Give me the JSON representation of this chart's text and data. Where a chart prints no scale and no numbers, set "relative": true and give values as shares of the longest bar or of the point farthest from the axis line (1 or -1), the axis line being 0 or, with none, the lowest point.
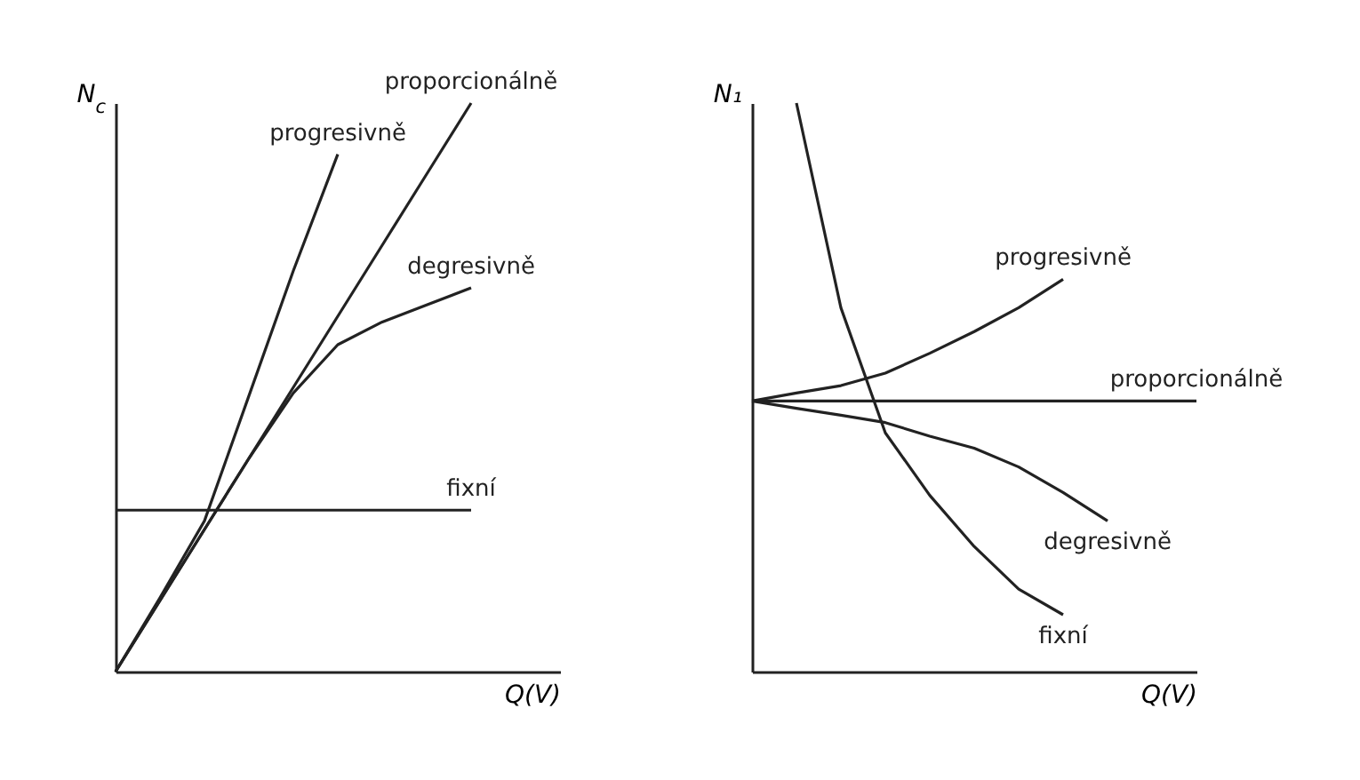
{
  "chart_data": [
    {
      "type": "line",
      "relative": true,
      "tick_labels": false,
      "ylabel": "N$_{c}$",
      "xlabel": "Q(V)",
      "categories": [
        null,
        null,
        null,
        null,
        null,
        null,
        null,
        null,
        null,
        null,
        null
      ],
      "series": [
        {
          "name": "progresivně",
          "color": "#222222",
          "values": [
            0,
            0.13,
            0.265,
            0.485,
            0.705,
            0.91,
            null,
            null,
            null,
            null,
            null
          ]
        },
        {
          "name": "proporcionálně",
          "color": "#222222",
          "values": [
            0,
            0.125,
            0.25,
            0.375,
            0.5,
            0.625,
            0.75,
            0.875,
            1,
            null,
            null
          ]
        },
        {
          "name": "degresivně",
          "color": "#222222",
          "values": [
            0,
            0.125,
            0.25,
            0.375,
            0.49,
            0.575,
            0.615,
            0.645,
            0.675,
            null,
            null
          ]
        },
        {
          "name": "fixní",
          "color": "#222222",
          "values": [
            0.284,
            0.284,
            0.284,
            0.284,
            0.284,
            0.284,
            0.284,
            0.284,
            0.284,
            null,
            null
          ]
        }
      ]
    },
    {
      "type": "line",
      "relative": true,
      "tick_labels": false,
      "ylabel": "N₁",
      "xlabel": "Q(V)",
      "categories": [
        null,
        null,
        null,
        null,
        null,
        null,
        null,
        null,
        null,
        null,
        null
      ],
      "series": [
        {
          "name": "progresivně",
          "color": "#222222",
          "values": [
            0.476,
            0.49,
            0.503,
            0.525,
            0.56,
            0.598,
            0.64,
            0.69,
            null,
            null,
            null
          ]
        },
        {
          "name": "proporcionálně",
          "color": "#222222",
          "values": [
            0.476,
            0.476,
            0.476,
            0.476,
            0.476,
            0.476,
            0.476,
            0.476,
            0.476,
            0.476,
            0.476
          ]
        },
        {
          "name": "degresivně",
          "color": "#222222",
          "values": [
            0.476,
            0.463,
            0.451,
            0.438,
            0.414,
            0.393,
            0.36,
            0.315,
            0.265,
            null,
            null
          ]
        },
        {
          "name": "fixní",
          "color": "#222222",
          "values": [
            null,
            1,
            0.64,
            0.42,
            0.31,
            0.22,
            0.145,
            0.1,
            null,
            null,
            null
          ]
        }
      ]
    }
  ]
}
